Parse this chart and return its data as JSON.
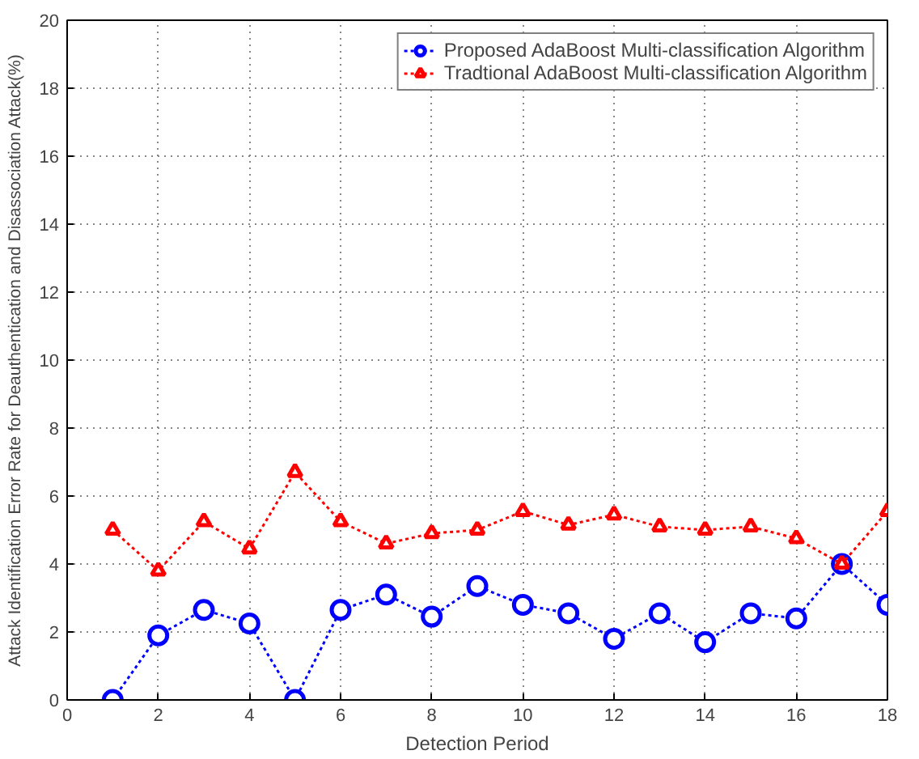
{
  "chart_data": {
    "type": "line",
    "xlabel": "Detection Period",
    "ylabel": "Attack Identification Error Rate for Deauthentication and Disassociation Attack(%)",
    "x": [
      1,
      2,
      3,
      4,
      5,
      6,
      7,
      8,
      9,
      10,
      11,
      12,
      13,
      14,
      15,
      16,
      17,
      18
    ],
    "series": [
      {
        "name": "Proposed AdaBoost Multi-classification Algorithm",
        "color": "#0000ff",
        "marker": "circle",
        "values": [
          0,
          1.9,
          2.65,
          2.25,
          0,
          2.65,
          3.1,
          2.45,
          3.35,
          2.8,
          2.55,
          1.8,
          2.55,
          1.7,
          2.55,
          2.4,
          4.0,
          2.8
        ]
      },
      {
        "name": "Tradtional AdaBoost Multi-classification Algorithm",
        "color": "#ff0000",
        "marker": "triangle",
        "values": [
          5.0,
          3.8,
          5.25,
          4.45,
          6.7,
          5.25,
          4.6,
          4.9,
          5.0,
          5.55,
          5.15,
          5.45,
          5.1,
          5.0,
          5.1,
          4.75,
          4.0,
          5.55
        ]
      }
    ],
    "xlim": [
      0,
      18
    ],
    "ylim": [
      0,
      20
    ],
    "xticks": [
      0,
      2,
      4,
      6,
      8,
      10,
      12,
      14,
      16,
      18
    ],
    "yticks": [
      0,
      2,
      4,
      6,
      8,
      10,
      12,
      14,
      16,
      18,
      20
    ],
    "grid": true,
    "legend": "top right",
    "line_style": "dotted"
  }
}
